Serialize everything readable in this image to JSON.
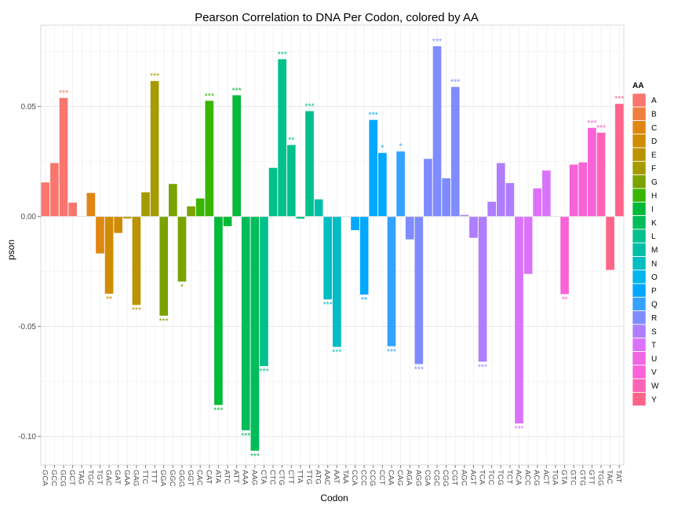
{
  "chart_data": {
    "type": "bar",
    "title": "Pearson Correlation to DNA Per Codon, colored by AA",
    "xlabel": "Codon",
    "ylabel": "pson",
    "ylim": [
      -0.113,
      0.087
    ],
    "yticks": [
      -0.1,
      -0.05,
      0.0,
      0.05
    ],
    "ytick_labels": [
      "-0.10",
      "-0.05",
      "0.00",
      "0.05"
    ],
    "grid": true,
    "legend_placement": "right",
    "legend": {
      "title": "AA",
      "entries": [
        {
          "label": "A",
          "color": "#F8766D"
        },
        {
          "label": "B",
          "color": "#EE8040"
        },
        {
          "label": "C",
          "color": "#DF8613"
        },
        {
          "label": "D",
          "color": "#CF8C00"
        },
        {
          "label": "E",
          "color": "#BB9300"
        },
        {
          "label": "F",
          "color": "#A59B00"
        },
        {
          "label": "G",
          "color": "#7AA300"
        },
        {
          "label": "H",
          "color": "#39B600"
        },
        {
          "label": "I",
          "color": "#00BA38"
        },
        {
          "label": "K",
          "color": "#00BC59"
        },
        {
          "label": "L",
          "color": "#00C08B"
        },
        {
          "label": "M",
          "color": "#00BFA6"
        },
        {
          "label": "N",
          "color": "#00BCC3"
        },
        {
          "label": "O",
          "color": "#00B6EB"
        },
        {
          "label": "P",
          "color": "#00A9FF"
        },
        {
          "label": "Q",
          "color": "#35A2FF"
        },
        {
          "label": "R",
          "color": "#7F8CFF"
        },
        {
          "label": "S",
          "color": "#AE7EFF"
        },
        {
          "label": "T",
          "color": "#DB72FB"
        },
        {
          "label": "U",
          "color": "#EE67E3"
        },
        {
          "label": "V",
          "color": "#FA62D7"
        },
        {
          "label": "W",
          "color": "#FF62B9"
        },
        {
          "label": "Y",
          "color": "#FF6589"
        }
      ]
    },
    "bars": [
      {
        "codon": "GCA",
        "aa": "A",
        "value": 0.0155,
        "sig": ""
      },
      {
        "codon": "GCC",
        "aa": "A",
        "value": 0.0243,
        "sig": ""
      },
      {
        "codon": "GCG",
        "aa": "A",
        "value": 0.0539,
        "sig": "***"
      },
      {
        "codon": "GCT",
        "aa": "A",
        "value": 0.0063,
        "sig": ""
      },
      {
        "codon": "TAG",
        "aa": "B",
        "value": 0.0,
        "sig": ""
      },
      {
        "codon": "TGC",
        "aa": "C",
        "value": 0.0107,
        "sig": ""
      },
      {
        "codon": "TGT",
        "aa": "C",
        "value": -0.0168,
        "sig": ""
      },
      {
        "codon": "GAC",
        "aa": "D",
        "value": -0.0351,
        "sig": "**"
      },
      {
        "codon": "GAT",
        "aa": "D",
        "value": -0.0075,
        "sig": ""
      },
      {
        "codon": "GAA",
        "aa": "E",
        "value": -0.0009,
        "sig": ""
      },
      {
        "codon": "GAG",
        "aa": "E",
        "value": -0.0402,
        "sig": "***"
      },
      {
        "codon": "TTC",
        "aa": "F",
        "value": 0.011,
        "sig": ""
      },
      {
        "codon": "TTT",
        "aa": "F",
        "value": 0.0616,
        "sig": "***"
      },
      {
        "codon": "GGA",
        "aa": "G",
        "value": -0.0451,
        "sig": "***"
      },
      {
        "codon": "GGC",
        "aa": "G",
        "value": 0.0148,
        "sig": ""
      },
      {
        "codon": "GGG",
        "aa": "G",
        "value": -0.0296,
        "sig": "*"
      },
      {
        "codon": "GGT",
        "aa": "G",
        "value": 0.0046,
        "sig": ""
      },
      {
        "codon": "CAC",
        "aa": "H",
        "value": 0.0082,
        "sig": ""
      },
      {
        "codon": "CAT",
        "aa": "H",
        "value": 0.0526,
        "sig": "***"
      },
      {
        "codon": "ATA",
        "aa": "I",
        "value": -0.0857,
        "sig": "***"
      },
      {
        "codon": "ATC",
        "aa": "I",
        "value": -0.0044,
        "sig": ""
      },
      {
        "codon": "ATT",
        "aa": "I",
        "value": 0.0551,
        "sig": "***"
      },
      {
        "codon": "AAA",
        "aa": "K",
        "value": -0.0972,
        "sig": "***"
      },
      {
        "codon": "AAG",
        "aa": "K",
        "value": -0.1065,
        "sig": "***"
      },
      {
        "codon": "CTA",
        "aa": "L",
        "value": -0.068,
        "sig": "***"
      },
      {
        "codon": "CTC",
        "aa": "L",
        "value": 0.0221,
        "sig": ""
      },
      {
        "codon": "CTG",
        "aa": "L",
        "value": 0.0715,
        "sig": "***"
      },
      {
        "codon": "CTT",
        "aa": "L",
        "value": 0.0325,
        "sig": "**"
      },
      {
        "codon": "TTA",
        "aa": "L",
        "value": -0.001,
        "sig": ""
      },
      {
        "codon": "TTG",
        "aa": "L",
        "value": 0.0479,
        "sig": "***"
      },
      {
        "codon": "ATG",
        "aa": "M",
        "value": 0.0078,
        "sig": ""
      },
      {
        "codon": "AAC",
        "aa": "N",
        "value": -0.0377,
        "sig": "***"
      },
      {
        "codon": "AAT",
        "aa": "N",
        "value": -0.0593,
        "sig": "***"
      },
      {
        "codon": "TAA",
        "aa": "O",
        "value": 0.0,
        "sig": ""
      },
      {
        "codon": "CCA",
        "aa": "P",
        "value": -0.0062,
        "sig": ""
      },
      {
        "codon": "CCC",
        "aa": "P",
        "value": -0.0355,
        "sig": "**"
      },
      {
        "codon": "CCG",
        "aa": "P",
        "value": 0.0439,
        "sig": "***"
      },
      {
        "codon": "CCT",
        "aa": "P",
        "value": 0.0289,
        "sig": "*"
      },
      {
        "codon": "CAA",
        "aa": "Q",
        "value": -0.059,
        "sig": "***"
      },
      {
        "codon": "CAG",
        "aa": "Q",
        "value": 0.0296,
        "sig": "*"
      },
      {
        "codon": "AGA",
        "aa": "R",
        "value": -0.0104,
        "sig": ""
      },
      {
        "codon": "AGG",
        "aa": "R",
        "value": -0.0671,
        "sig": "***"
      },
      {
        "codon": "CGA",
        "aa": "R",
        "value": 0.0262,
        "sig": ""
      },
      {
        "codon": "CGC",
        "aa": "R",
        "value": 0.0774,
        "sig": "***"
      },
      {
        "codon": "CGG",
        "aa": "R",
        "value": 0.0174,
        "sig": ""
      },
      {
        "codon": "CGT",
        "aa": "R",
        "value": 0.0589,
        "sig": "***"
      },
      {
        "codon": "AGC",
        "aa": "S",
        "value": 0.0007,
        "sig": ""
      },
      {
        "codon": "AGT",
        "aa": "S",
        "value": -0.0097,
        "sig": ""
      },
      {
        "codon": "TCA",
        "aa": "S",
        "value": -0.066,
        "sig": "***"
      },
      {
        "codon": "TCC",
        "aa": "S",
        "value": 0.0067,
        "sig": ""
      },
      {
        "codon": "TCG",
        "aa": "S",
        "value": 0.0243,
        "sig": ""
      },
      {
        "codon": "TCT",
        "aa": "S",
        "value": 0.0152,
        "sig": ""
      },
      {
        "codon": "ACA",
        "aa": "T",
        "value": -0.0941,
        "sig": "***"
      },
      {
        "codon": "ACC",
        "aa": "T",
        "value": -0.0261,
        "sig": ""
      },
      {
        "codon": "ACG",
        "aa": "T",
        "value": 0.0128,
        "sig": ""
      },
      {
        "codon": "ACT",
        "aa": "T",
        "value": 0.0209,
        "sig": ""
      },
      {
        "codon": "TGA",
        "aa": "U",
        "value": 0.0,
        "sig": ""
      },
      {
        "codon": "GTA",
        "aa": "V",
        "value": -0.0353,
        "sig": "**"
      },
      {
        "codon": "GTC",
        "aa": "V",
        "value": 0.0236,
        "sig": ""
      },
      {
        "codon": "GTG",
        "aa": "V",
        "value": 0.0246,
        "sig": ""
      },
      {
        "codon": "GTT",
        "aa": "V",
        "value": 0.0403,
        "sig": "***"
      },
      {
        "codon": "TGG",
        "aa": "W",
        "value": 0.0381,
        "sig": "***"
      },
      {
        "codon": "TAC",
        "aa": "Y",
        "value": -0.0243,
        "sig": ""
      },
      {
        "codon": "TAT",
        "aa": "Y",
        "value": 0.0512,
        "sig": "***"
      }
    ]
  }
}
